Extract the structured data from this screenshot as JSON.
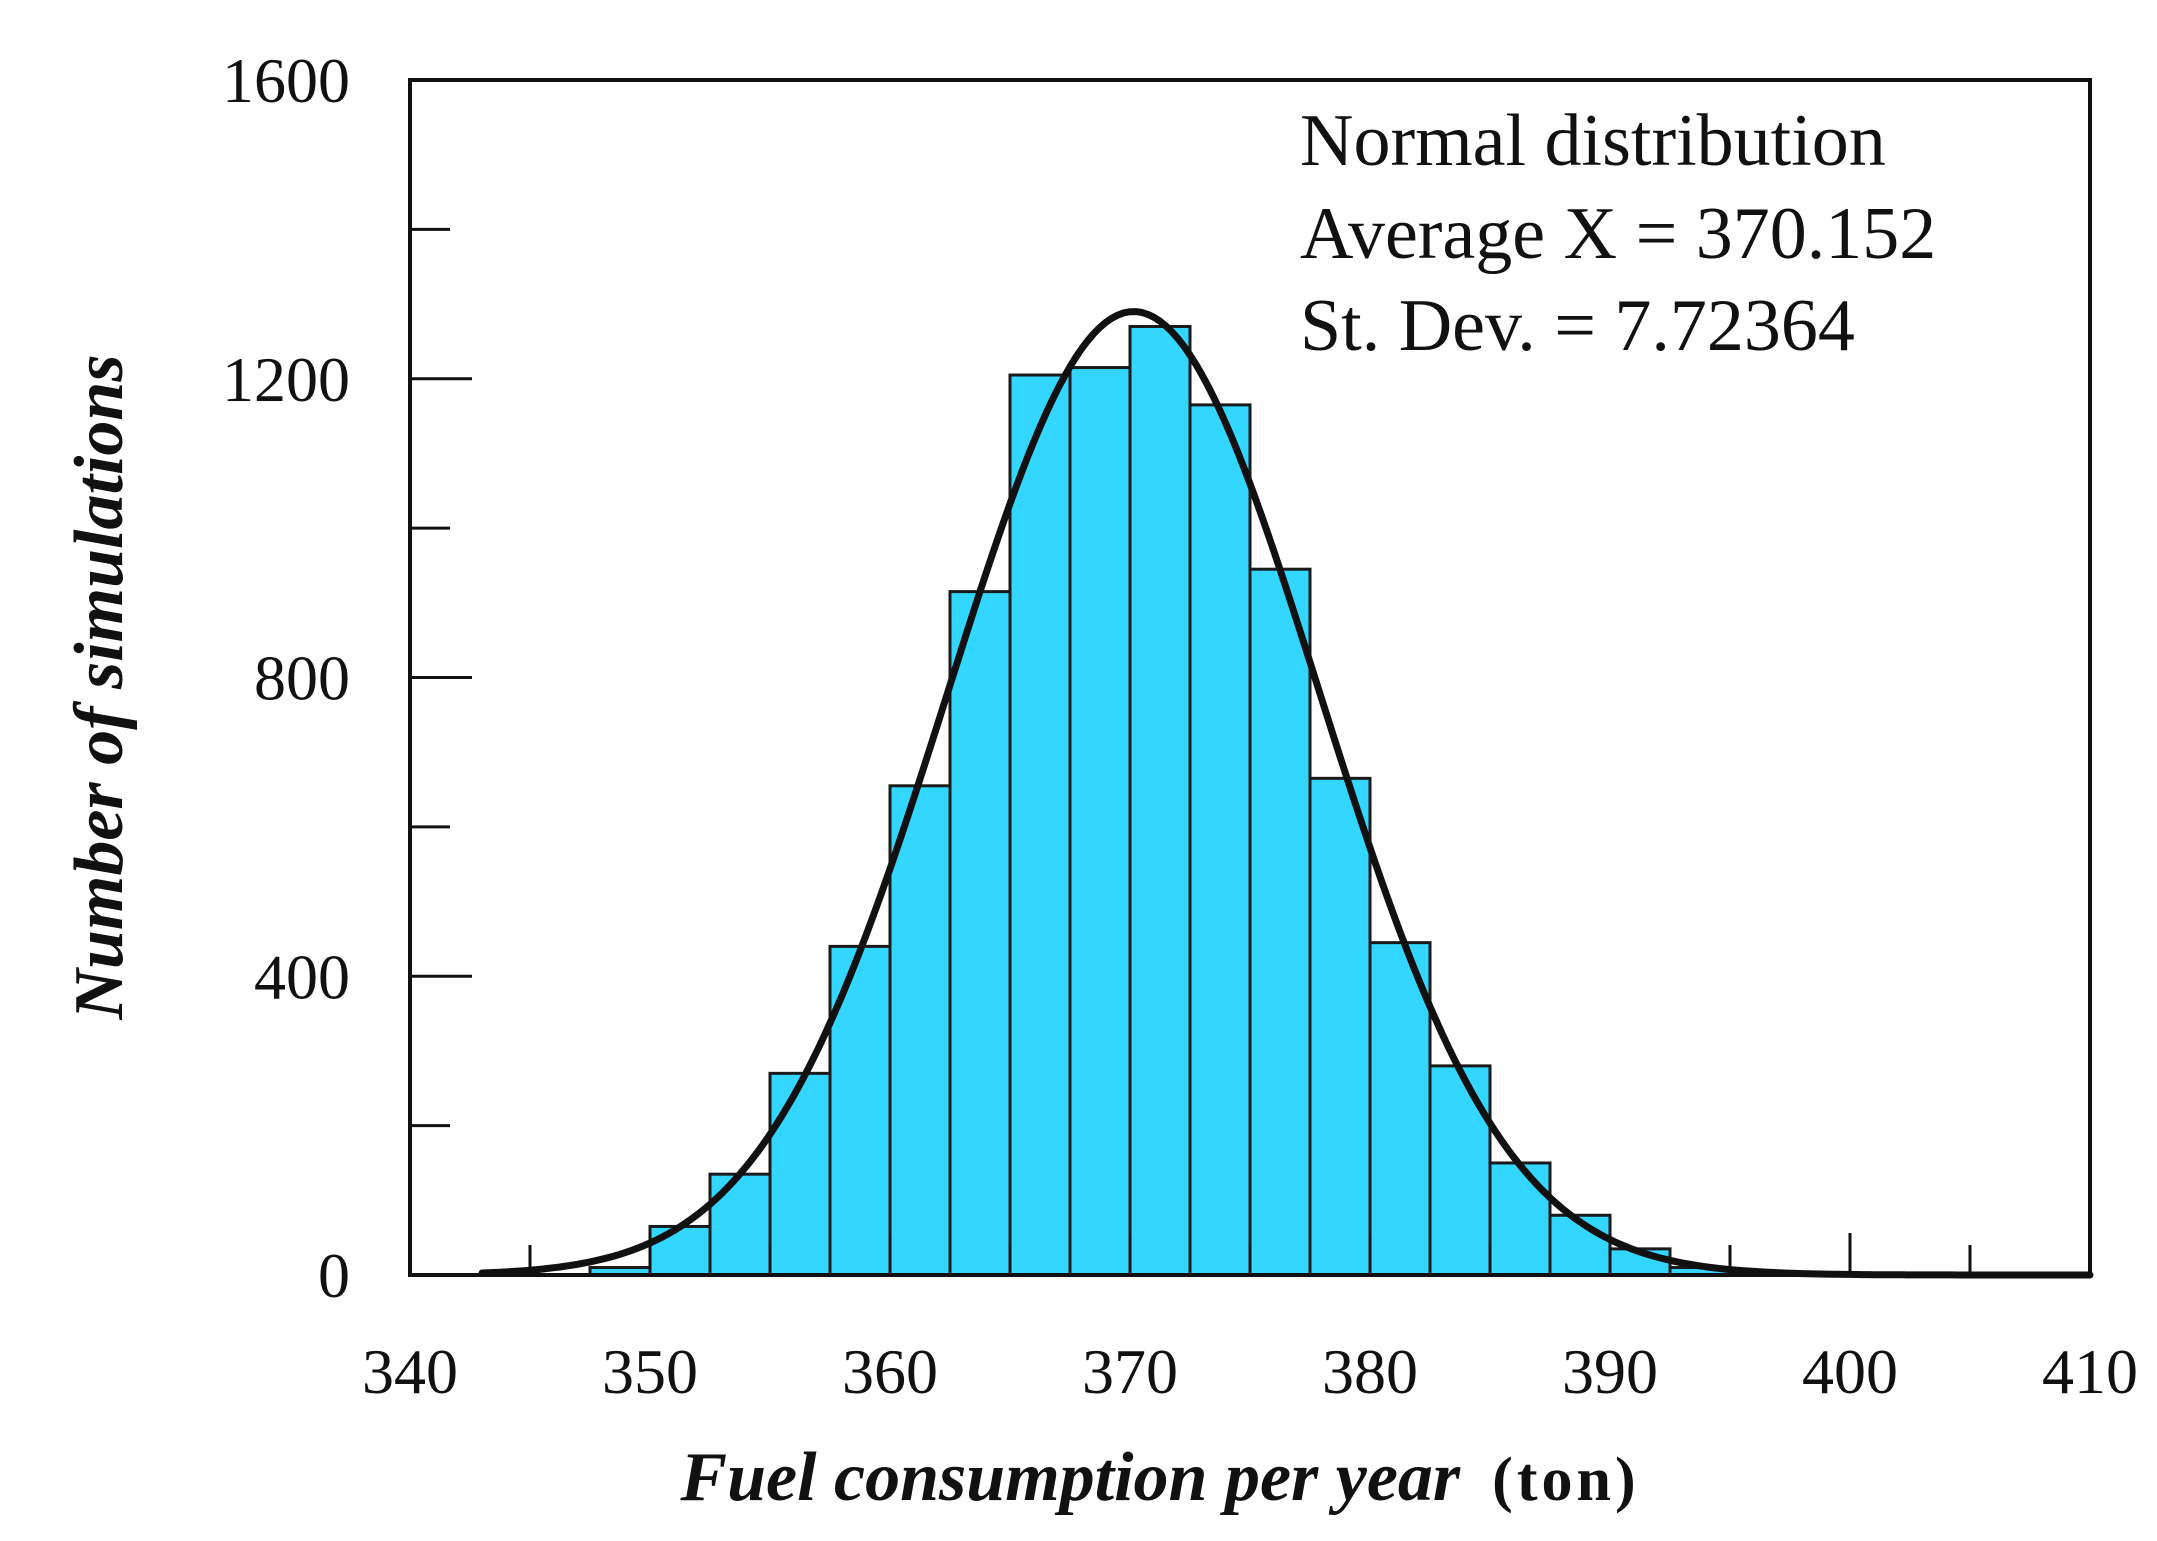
{
  "chart_data": {
    "type": "bar",
    "subtype": "histogram",
    "bin_width": 2.5,
    "bins": [
      {
        "x0": 347.5,
        "x1": 350.0,
        "value": 10
      },
      {
        "x0": 350.0,
        "x1": 352.5,
        "value": 65
      },
      {
        "x0": 352.5,
        "x1": 355.0,
        "value": 135
      },
      {
        "x0": 355.0,
        "x1": 357.5,
        "value": 270
      },
      {
        "x0": 357.5,
        "x1": 360.0,
        "value": 440
      },
      {
        "x0": 360.0,
        "x1": 362.5,
        "value": 655
      },
      {
        "x0": 362.5,
        "x1": 365.0,
        "value": 915
      },
      {
        "x0": 365.0,
        "x1": 367.5,
        "value": 1205
      },
      {
        "x0": 367.5,
        "x1": 370.0,
        "value": 1215
      },
      {
        "x0": 370.0,
        "x1": 372.5,
        "value": 1270
      },
      {
        "x0": 372.5,
        "x1": 375.0,
        "value": 1165
      },
      {
        "x0": 375.0,
        "x1": 377.5,
        "value": 945
      },
      {
        "x0": 377.5,
        "x1": 380.0,
        "value": 665
      },
      {
        "x0": 380.0,
        "x1": 382.5,
        "value": 445
      },
      {
        "x0": 382.5,
        "x1": 385.0,
        "value": 280
      },
      {
        "x0": 385.0,
        "x1": 387.5,
        "value": 150
      },
      {
        "x0": 387.5,
        "x1": 390.0,
        "value": 80
      },
      {
        "x0": 390.0,
        "x1": 392.5,
        "value": 35
      },
      {
        "x0": 392.5,
        "x1": 395.0,
        "value": 10
      }
    ],
    "fit_curve": {
      "distribution": "normal",
      "mean": 370.152,
      "std": 7.72364,
      "peak": 1290,
      "x_range": [
        343,
        410
      ]
    },
    "xlabel": "Fuel consumption per year",
    "xlabel_unit": "(ton)",
    "ylabel": "Number of simulations",
    "xlim": [
      340,
      410
    ],
    "ylim": [
      0,
      1600
    ],
    "xticks": [
      "340",
      "350",
      "360",
      "370",
      "380",
      "390",
      "400",
      "410"
    ],
    "yticks": [
      "0",
      "400",
      "800",
      "1200",
      "1600"
    ],
    "annotations": [
      "Normal distribution",
      "Average X = 370.152",
      "St. Dev. = 7.72364"
    ],
    "grid": false,
    "colors": {
      "bar_fill": "#33d6ff",
      "bar_edge": "#1a1a1a",
      "curve": "#111111",
      "axis": "#111111"
    }
  }
}
